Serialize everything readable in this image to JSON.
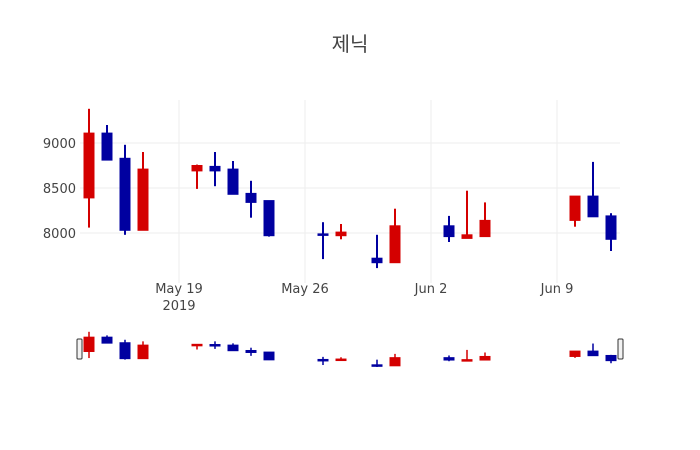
{
  "chart_data": {
    "type": "candlestick",
    "title": "제닉",
    "xlabel": "",
    "ylabel": "",
    "x_ticks": [
      "May 19\n2019",
      "May 26",
      "Jun 2",
      "Jun 9"
    ],
    "x_tick_labels": [
      {
        "label": "May 19",
        "sublabel": "2019",
        "date": "2019-05-19"
      },
      {
        "label": "May 26",
        "sublabel": "",
        "date": "2019-05-26"
      },
      {
        "label": "Jun 2",
        "sublabel": "",
        "date": "2019-06-02"
      },
      {
        "label": "Jun 9",
        "sublabel": "",
        "date": "2019-06-09"
      }
    ],
    "y_ticks": [
      8000,
      8500,
      9000
    ],
    "ylim": [
      7560,
      9420
    ],
    "grid": true,
    "legend": false,
    "range_slider": true,
    "increasing_color": "#d40000",
    "decreasing_color": "#0000a0",
    "series": [
      {
        "date": "2019-05-14",
        "open": 8390,
        "high": 9380,
        "low": 8060,
        "close": 9110
      },
      {
        "date": "2019-05-15",
        "open": 9110,
        "high": 9200,
        "low": 8810,
        "close": 8810
      },
      {
        "date": "2019-05-16",
        "open": 8830,
        "high": 8980,
        "low": 7980,
        "close": 8030
      },
      {
        "date": "2019-05-17",
        "open": 8030,
        "high": 8900,
        "low": 8030,
        "close": 8710
      },
      {
        "date": "2019-05-20",
        "open": 8690,
        "high": 8760,
        "low": 8490,
        "close": 8750
      },
      {
        "date": "2019-05-21",
        "open": 8740,
        "high": 8900,
        "low": 8520,
        "close": 8690
      },
      {
        "date": "2019-05-22",
        "open": 8710,
        "high": 8800,
        "low": 8430,
        "close": 8430
      },
      {
        "date": "2019-05-23",
        "open": 8440,
        "high": 8580,
        "low": 8170,
        "close": 8340
      },
      {
        "date": "2019-05-24",
        "open": 8360,
        "high": 8360,
        "low": 7960,
        "close": 7970
      },
      {
        "date": "2019-05-27",
        "open": 7990,
        "high": 8120,
        "low": 7710,
        "close": 7980
      },
      {
        "date": "2019-05-28",
        "open": 7970,
        "high": 8100,
        "low": 7930,
        "close": 8010
      },
      {
        "date": "2019-05-30",
        "open": 7720,
        "high": 7980,
        "low": 7610,
        "close": 7670
      },
      {
        "date": "2019-05-31",
        "open": 7670,
        "high": 8270,
        "low": 7670,
        "close": 8080
      },
      {
        "date": "2019-06-03",
        "open": 8080,
        "high": 8190,
        "low": 7900,
        "close": 7960
      },
      {
        "date": "2019-06-04",
        "open": 7940,
        "high": 8470,
        "low": 7940,
        "close": 7980
      },
      {
        "date": "2019-06-05",
        "open": 7960,
        "high": 8340,
        "low": 7960,
        "close": 8140
      },
      {
        "date": "2019-06-10",
        "open": 8140,
        "high": 8410,
        "low": 8070,
        "close": 8410
      },
      {
        "date": "2019-06-11",
        "open": 8410,
        "high": 8790,
        "low": 8180,
        "close": 8180
      },
      {
        "date": "2019-06-12",
        "open": 8190,
        "high": 8220,
        "low": 7800,
        "close": 7930
      }
    ]
  }
}
